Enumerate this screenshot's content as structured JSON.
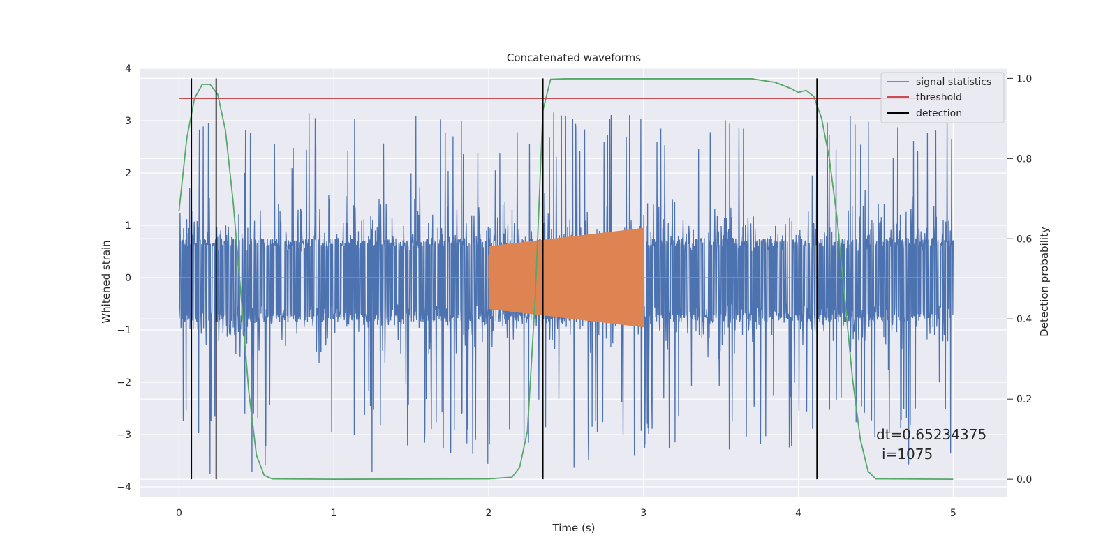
{
  "chart_data": {
    "type": "line",
    "title": "Concatenated waveforms",
    "xlabel": "Time (s)",
    "ylabel_left": "Whitened strain",
    "ylabel_right": "Detection probability",
    "xlim": [
      -0.25,
      5.35
    ],
    "ylim_left": [
      -4.2,
      4.0
    ],
    "ylim_right": [
      -0.045,
      1.025
    ],
    "xticks": [
      0,
      1,
      2,
      3,
      4,
      5
    ],
    "xtick_labels": [
      "0",
      "1",
      "2",
      "3",
      "4",
      "5"
    ],
    "yticks_left": [
      -4,
      -3,
      -2,
      -1,
      0,
      1,
      2,
      3,
      4
    ],
    "ytick_labels_left": [
      "−4",
      "−3",
      "−2",
      "−1",
      "0",
      "1",
      "2",
      "3",
      "4"
    ],
    "yticks_right": [
      0.0,
      0.2,
      0.4,
      0.6,
      0.8,
      1.0
    ],
    "ytick_labels_right": [
      "0.0",
      "0.2",
      "0.4",
      "0.6",
      "0.8",
      "1.0"
    ],
    "grid": true,
    "legend_position": "top-right",
    "noise": {
      "x_start": 0,
      "x_end": 5,
      "core_band": [
        -0.85,
        0.75
      ],
      "max_spikes": [
        1.4,
        2.6,
        3.35,
        3.25,
        3.1,
        3.0,
        3.05,
        3.2,
        3.15,
        3.1,
        2.6
      ],
      "min_spikes": [
        -3.75,
        -3.2,
        -2.55,
        -3.85,
        -2.9,
        -2.6,
        -2.9,
        -3.45,
        -3.0,
        -3.3,
        -3.4
      ],
      "color": "#4c72b0"
    },
    "injection": {
      "x_start": 2.0,
      "x_end": 3.0,
      "amp_start": 0.6,
      "amp_end": 0.95,
      "color": "#dd8452"
    },
    "series": [
      {
        "name": "signal statistics",
        "axis": "right",
        "color": "#55a868",
        "x": [
          0,
          0.05,
          0.1,
          0.15,
          0.2,
          0.25,
          0.3,
          0.35,
          0.4,
          0.45,
          0.5,
          0.55,
          0.6,
          1.0,
          2.0,
          2.15,
          2.2,
          2.25,
          2.3,
          2.35,
          2.4,
          2.5,
          3.0,
          3.7,
          3.85,
          3.95,
          4.0,
          4.05,
          4.1,
          4.15,
          4.2,
          4.25,
          4.3,
          4.35,
          4.4,
          4.45,
          4.5,
          5.0
        ],
        "y": [
          0.67,
          0.85,
          0.95,
          0.985,
          0.985,
          0.96,
          0.87,
          0.69,
          0.46,
          0.22,
          0.06,
          0.01,
          0.001,
          0.0,
          0.001,
          0.005,
          0.03,
          0.12,
          0.45,
          0.92,
          0.998,
          0.999,
          0.999,
          0.999,
          0.99,
          0.975,
          0.965,
          0.97,
          0.955,
          0.9,
          0.8,
          0.65,
          0.45,
          0.25,
          0.1,
          0.02,
          0.001,
          0.0
        ]
      },
      {
        "name": "threshold",
        "axis": "right",
        "color": "#c44e52",
        "x": [
          0,
          5
        ],
        "y": [
          0.95,
          0.95
        ]
      },
      {
        "name": "detection",
        "axis": "right",
        "color": "#000000",
        "type": "vlines",
        "x": [
          0.08,
          0.24,
          2.35,
          4.12
        ],
        "y_range": [
          0.0,
          1.0
        ]
      }
    ],
    "annotation": {
      "line1": "dt=0.65234375",
      "line2": "i=1075",
      "x": 4.5,
      "y": 0.1
    },
    "colors": {
      "plot_background": "#eaeaf2",
      "grid": "#ffffff",
      "text": "#262626"
    }
  }
}
